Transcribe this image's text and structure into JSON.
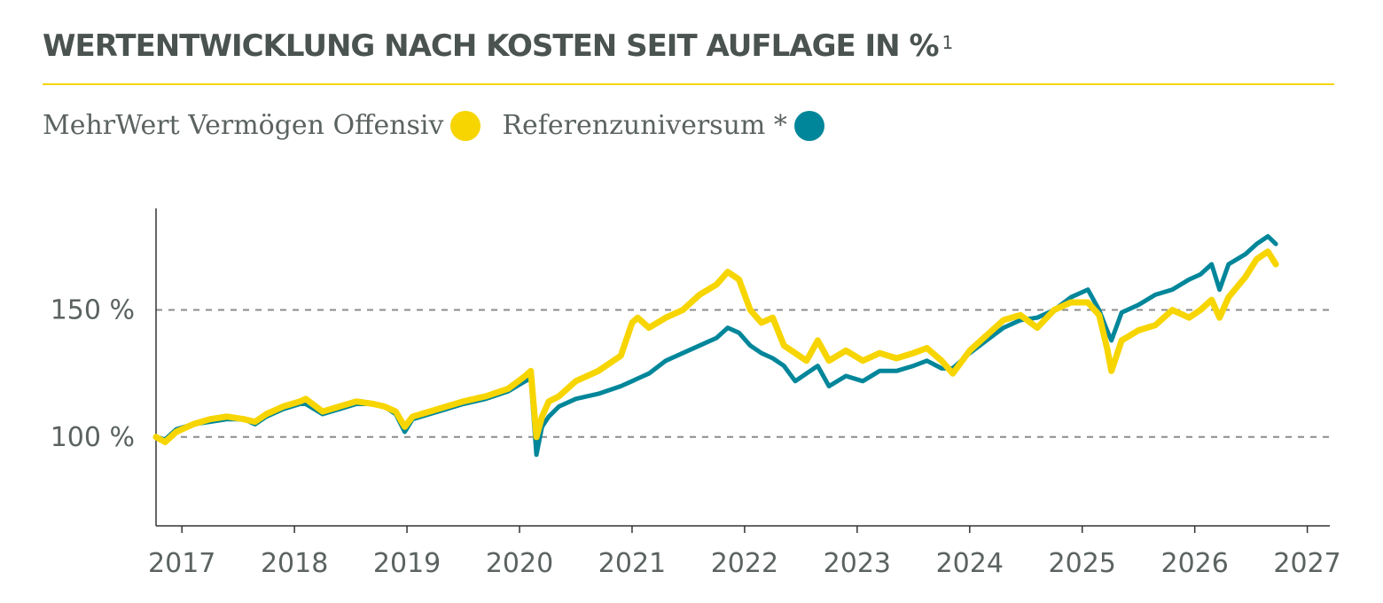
{
  "title": "WERTENTWICKLUNG NACH KOSTEN SEIT AUFLAGE IN %",
  "title_footnote": "1",
  "colors": {
    "fund": "#f7d500",
    "reference": "#00869a",
    "rule": "#f7d500",
    "axis": "#333333",
    "grid": "#8c8c8c"
  },
  "legend": [
    {
      "label": "MehrWert Vermögen Offensiv",
      "color": "#f7d500"
    },
    {
      "label": "Referenzuniversum *",
      "color": "#00869a"
    }
  ],
  "chart_data": {
    "type": "line",
    "xlim": [
      2016.77,
      2027.2
    ],
    "ylim": [
      65,
      190
    ],
    "x_ticks": [
      "2017",
      "2018",
      "2019",
      "2020",
      "2021",
      "2022",
      "2023",
      "2024",
      "2025",
      "2026",
      "2027"
    ],
    "y_ticks": [
      "100 %",
      "150 %"
    ],
    "y_tick_values": [
      100,
      150
    ],
    "grid": "dashed horizontal at y-ticks",
    "legend_position": "top-left",
    "series": [
      {
        "name": "MehrWert Vermögen Offensiv",
        "color": "#f7d500",
        "x": [
          2016.77,
          2016.85,
          2016.95,
          2017.1,
          2017.25,
          2017.4,
          2017.55,
          2017.65,
          2017.75,
          2017.9,
          2018.05,
          2018.1,
          2018.25,
          2018.4,
          2018.55,
          2018.7,
          2018.8,
          2018.9,
          2018.98,
          2019.05,
          2019.2,
          2019.35,
          2019.5,
          2019.7,
          2019.9,
          2020.05,
          2020.1,
          2020.15,
          2020.2,
          2020.26,
          2020.35,
          2020.5,
          2020.7,
          2020.9,
          2021.0,
          2021.05,
          2021.15,
          2021.3,
          2021.45,
          2021.6,
          2021.75,
          2021.85,
          2021.95,
          2022.05,
          2022.15,
          2022.25,
          2022.35,
          2022.45,
          2022.55,
          2022.65,
          2022.75,
          2022.9,
          2023.05,
          2023.2,
          2023.35,
          2023.5,
          2023.62,
          2023.75,
          2023.85,
          2024.0,
          2024.15,
          2024.3,
          2024.45,
          2024.6,
          2024.75,
          2024.9,
          2025.05,
          2025.15,
          2025.22,
          2025.26,
          2025.35,
          2025.5,
          2025.65,
          2025.8,
          2025.95,
          2026.05,
          2026.15,
          2026.22,
          2026.3,
          2026.45,
          2026.55,
          2026.65,
          2026.72
        ],
        "y": [
          100,
          98,
          102,
          105,
          107,
          108,
          107,
          106,
          109,
          112,
          114,
          115,
          110,
          112,
          114,
          113,
          112,
          110,
          104,
          108,
          110,
          112,
          114,
          116,
          119,
          124,
          126,
          100,
          108,
          114,
          116,
          122,
          126,
          132,
          145,
          147,
          143,
          147,
          150,
          156,
          160,
          165,
          162,
          150,
          145,
          147,
          136,
          133,
          130,
          138,
          130,
          134,
          130,
          133,
          131,
          133,
          135,
          130,
          125,
          134,
          140,
          146,
          148,
          143,
          150,
          153,
          153,
          148,
          135,
          126,
          138,
          142,
          144,
          150,
          147,
          150,
          154,
          147,
          155,
          163,
          170,
          173,
          168
        ]
      },
      {
        "name": "Referenzuniversum *",
        "color": "#00869a",
        "x": [
          2016.77,
          2016.85,
          2016.95,
          2017.1,
          2017.25,
          2017.4,
          2017.55,
          2017.65,
          2017.75,
          2017.9,
          2018.05,
          2018.1,
          2018.25,
          2018.4,
          2018.55,
          2018.7,
          2018.8,
          2018.9,
          2018.98,
          2019.05,
          2019.2,
          2019.35,
          2019.5,
          2019.7,
          2019.9,
          2020.05,
          2020.1,
          2020.15,
          2020.2,
          2020.26,
          2020.35,
          2020.5,
          2020.7,
          2020.9,
          2021.0,
          2021.05,
          2021.15,
          2021.3,
          2021.45,
          2021.6,
          2021.75,
          2021.85,
          2021.95,
          2022.05,
          2022.15,
          2022.25,
          2022.35,
          2022.45,
          2022.55,
          2022.65,
          2022.75,
          2022.9,
          2023.05,
          2023.2,
          2023.35,
          2023.5,
          2023.62,
          2023.75,
          2023.85,
          2024.0,
          2024.15,
          2024.3,
          2024.45,
          2024.6,
          2024.75,
          2024.9,
          2025.05,
          2025.15,
          2025.22,
          2025.26,
          2025.35,
          2025.5,
          2025.65,
          2025.8,
          2025.95,
          2026.05,
          2026.15,
          2026.22,
          2026.3,
          2026.45,
          2026.55,
          2026.65,
          2026.72
        ],
        "y": [
          100,
          99,
          103,
          105,
          106,
          107,
          107,
          105,
          108,
          111,
          113,
          113,
          109,
          111,
          113,
          113,
          112,
          109,
          102,
          107,
          109,
          111,
          113,
          115,
          118,
          122,
          123,
          93,
          104,
          108,
          112,
          115,
          117,
          120,
          122,
          123,
          125,
          130,
          133,
          136,
          139,
          143,
          141,
          136,
          133,
          131,
          128,
          122,
          125,
          128,
          120,
          124,
          122,
          126,
          126,
          128,
          130,
          127,
          127,
          133,
          138,
          143,
          146,
          147,
          150,
          155,
          158,
          150,
          142,
          138,
          149,
          152,
          156,
          158,
          162,
          164,
          168,
          158,
          168,
          172,
          176,
          179,
          176
        ]
      }
    ]
  }
}
